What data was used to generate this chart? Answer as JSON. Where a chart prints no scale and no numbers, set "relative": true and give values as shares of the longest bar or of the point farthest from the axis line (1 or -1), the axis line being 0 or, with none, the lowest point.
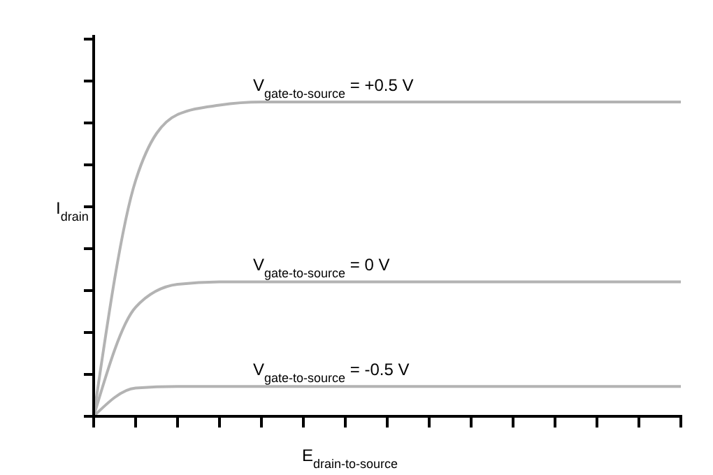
{
  "chart_data": {
    "type": "line",
    "relative": true,
    "xlabel": "E$_{drain-to-source}$",
    "ylabel": "I$_{drain}$",
    "grid": false,
    "marker": "none",
    "line_style": "solid",
    "categories": [
      null,
      null,
      null,
      null,
      null,
      null,
      null,
      null,
      null,
      null,
      null,
      null,
      null,
      null,
      null
    ],
    "series": [
      {
        "name": "V$_{gate-to-source}$ = +0.5 V",
        "color": "#b3b3b3",
        "values": [
          0,
          0.75,
          0.96,
          0.99,
          1,
          1,
          1,
          1,
          1,
          1,
          1,
          1,
          1,
          1,
          1
        ]
      },
      {
        "name": "V$_{gate-to-source}$ = 0 V",
        "color": "#b3b3b3",
        "values": [
          0,
          0.347,
          0.42,
          0.428,
          0.428,
          0.428,
          0.428,
          0.428,
          0.428,
          0.428,
          0.428,
          0.428,
          0.428,
          0.428,
          0.428
        ]
      },
      {
        "name": "V$_{gate-to-source}$ = -0.5 V",
        "color": "#b3b3b3",
        "values": [
          0,
          0.09,
          0.095,
          0.095,
          0.095,
          0.095,
          0.095,
          0.095,
          0.095,
          0.095,
          0.095,
          0.095,
          0.095,
          0.095,
          0.095
        ]
      }
    ]
  }
}
